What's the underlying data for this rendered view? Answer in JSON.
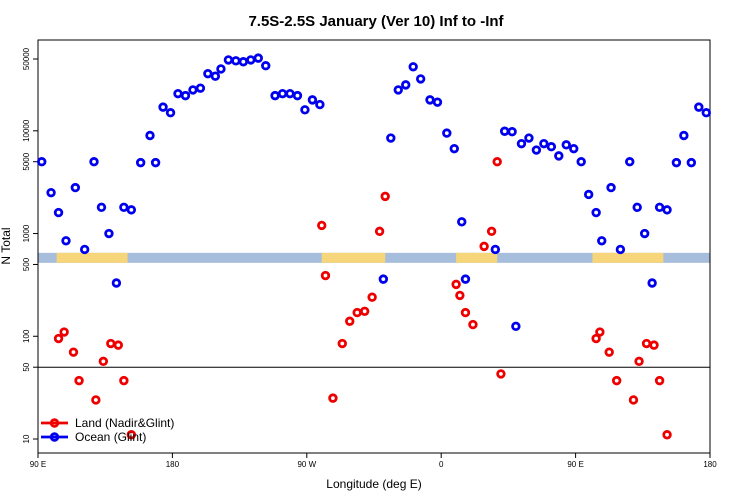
{
  "chart_data": {
    "type": "scatter",
    "title": "7.5S-2.5S January (Ver 10)   Inf to -Inf",
    "xlabel": "Longitude (deg E)",
    "ylabel": "N Total",
    "x_axis": {
      "range": [
        0,
        360
      ],
      "ticks": [
        {
          "value": 0,
          "label": "90 E"
        },
        {
          "value": 72,
          "label": "180"
        },
        {
          "value": 144,
          "label": "90 W"
        },
        {
          "value": 216,
          "label": "0"
        },
        {
          "value": 288,
          "label": "90 E"
        },
        {
          "value": 360,
          "label": "180"
        }
      ]
    },
    "y_axis": {
      "scale": "log",
      "range": [
        8,
        70000
      ],
      "ticks": [
        {
          "value": 10,
          "label": "10"
        },
        {
          "value": 50,
          "label": "50"
        },
        {
          "value": 100,
          "label": "100"
        },
        {
          "value": 500,
          "label": "500"
        },
        {
          "value": 1000,
          "label": "1000"
        },
        {
          "value": 5000,
          "label": "5000"
        },
        {
          "value": 10000,
          "label": "10000"
        },
        {
          "value": 50000,
          "label": "50000"
        }
      ],
      "reference_line": 50
    },
    "map_strip": {
      "y_value": 580,
      "ocean_color": "#a7bddc",
      "land_color": "#f7d57a"
    },
    "series": [
      {
        "name": "Land (Nadir&Glint)",
        "color": "#ee0000",
        "points": [
          [
            11,
            95
          ],
          [
            14,
            110
          ],
          [
            19,
            70
          ],
          [
            22,
            37
          ],
          [
            31,
            24
          ],
          [
            35,
            57
          ],
          [
            39,
            85
          ],
          [
            43,
            82
          ],
          [
            46,
            37
          ],
          [
            50,
            11
          ],
          [
            152,
            1200
          ],
          [
            154,
            390
          ],
          [
            158,
            25
          ],
          [
            163,
            85
          ],
          [
            167,
            140
          ],
          [
            171,
            170
          ],
          [
            175,
            175
          ],
          [
            179,
            240
          ],
          [
            183,
            1050
          ],
          [
            186,
            2300
          ],
          [
            224,
            320
          ],
          [
            226,
            250
          ],
          [
            229,
            170
          ],
          [
            233,
            130
          ],
          [
            239,
            750
          ],
          [
            243,
            1050
          ],
          [
            246,
            5000
          ],
          [
            248,
            43
          ],
          [
            299,
            95
          ],
          [
            301,
            110
          ],
          [
            306,
            70
          ],
          [
            310,
            37
          ],
          [
            319,
            24
          ],
          [
            322,
            57
          ],
          [
            326,
            85
          ],
          [
            330,
            82
          ],
          [
            333,
            37
          ],
          [
            337,
            11
          ]
        ]
      },
      {
        "name": "Ocean (Glint)",
        "color": "#0000ee",
        "points": [
          [
            2,
            5000
          ],
          [
            7,
            2500
          ],
          [
            11,
            1600
          ],
          [
            15,
            850
          ],
          [
            20,
            2800
          ],
          [
            25,
            700
          ],
          [
            30,
            5000
          ],
          [
            34,
            1800
          ],
          [
            38,
            1000
          ],
          [
            42,
            330
          ],
          [
            46,
            1800
          ],
          [
            50,
            1700
          ],
          [
            55,
            4900
          ],
          [
            60,
            9000
          ],
          [
            63,
            4900
          ],
          [
            67,
            17000
          ],
          [
            71,
            15000
          ],
          [
            75,
            23000
          ],
          [
            79,
            22000
          ],
          [
            83,
            25000
          ],
          [
            87,
            26000
          ],
          [
            91,
            36000
          ],
          [
            95,
            34000
          ],
          [
            98,
            40000
          ],
          [
            102,
            49000
          ],
          [
            106,
            48000
          ],
          [
            110,
            47000
          ],
          [
            114,
            49000
          ],
          [
            118,
            51000
          ],
          [
            122,
            43000
          ],
          [
            127,
            22000
          ],
          [
            131,
            23000
          ],
          [
            135,
            23000
          ],
          [
            139,
            22000
          ],
          [
            143,
            16000
          ],
          [
            147,
            20000
          ],
          [
            151,
            18000
          ],
          [
            185,
            360
          ],
          [
            189,
            8500
          ],
          [
            193,
            25000
          ],
          [
            197,
            28000
          ],
          [
            201,
            42000
          ],
          [
            205,
            32000
          ],
          [
            210,
            20000
          ],
          [
            214,
            19000
          ],
          [
            219,
            9500
          ],
          [
            223,
            6700
          ],
          [
            227,
            1300
          ],
          [
            229,
            360
          ],
          [
            245,
            700
          ],
          [
            256,
            125
          ],
          [
            250,
            9900
          ],
          [
            254,
            9800
          ],
          [
            259,
            7500
          ],
          [
            263,
            8500
          ],
          [
            267,
            6500
          ],
          [
            271,
            7500
          ],
          [
            275,
            7000
          ],
          [
            279,
            5700
          ],
          [
            283,
            7300
          ],
          [
            287,
            6700
          ],
          [
            291,
            5000
          ],
          [
            295,
            2400
          ],
          [
            299,
            1600
          ],
          [
            302,
            850
          ],
          [
            307,
            2800
          ],
          [
            312,
            700
          ],
          [
            317,
            5000
          ],
          [
            321,
            1800
          ],
          [
            325,
            1000
          ],
          [
            329,
            330
          ],
          [
            333,
            1800
          ],
          [
            337,
            1700
          ],
          [
            342,
            4900
          ],
          [
            346,
            9000
          ],
          [
            350,
            4900
          ],
          [
            354,
            17000
          ],
          [
            358,
            15000
          ]
        ]
      }
    ],
    "legend": {
      "placement": "bottom-left",
      "entries": [
        {
          "label": "Land (Nadir&Glint)",
          "color": "#ee0000"
        },
        {
          "label": "Ocean (Glint)",
          "color": "#0000ee"
        }
      ]
    }
  }
}
